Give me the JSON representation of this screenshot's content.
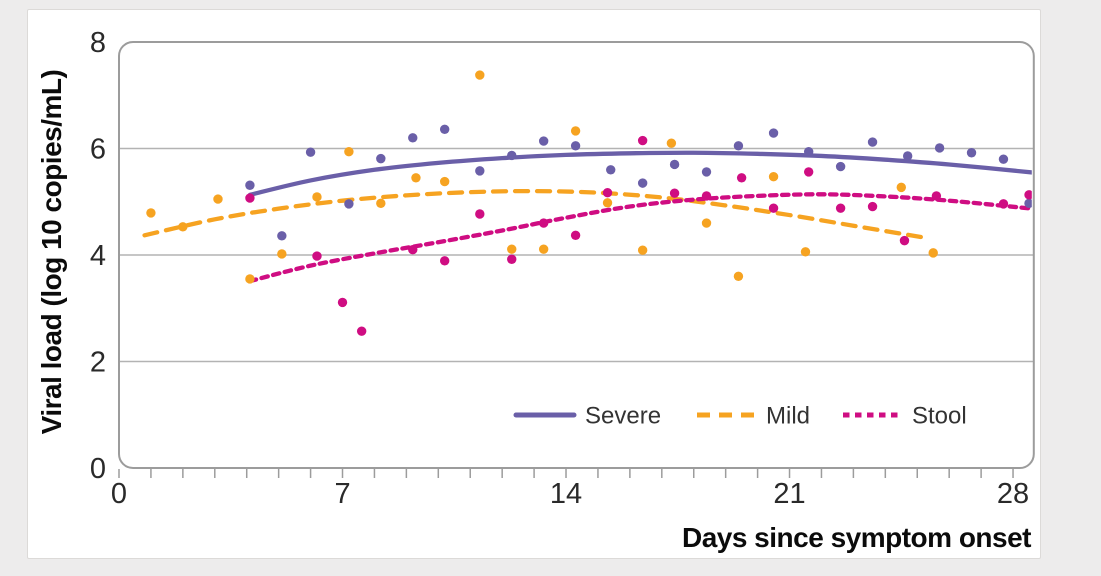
{
  "page": {
    "background_color": "#edecec",
    "card_background": "#ffffff",
    "card_border_color": "#dcdad8"
  },
  "chart_data": {
    "type": "scatter",
    "title": "",
    "xlabel": "Days since symptom onset",
    "ylabel": "Viral load (log 10 copies/mL)",
    "xlim": [
      0,
      28.65
    ],
    "ylim": [
      0,
      8
    ],
    "x_ticks": [
      0,
      7,
      14,
      21,
      28
    ],
    "x_minor_tick_step": 1,
    "y_ticks": [
      0,
      2,
      4,
      6,
      8
    ],
    "grid_y": [
      2,
      4,
      6
    ],
    "grid": "horizontal-only",
    "frame_color": "#9c9c9c",
    "grid_color": "#b3b3b3",
    "tick_label_color": "#2a2a2a",
    "legend_position": "inside-bottom-right",
    "legend_text_color": "#333333",
    "series": [
      {
        "name": "Severe",
        "color": "#6a5fa8",
        "line_style": "solid",
        "marker": "circle",
        "points": [
          [
            4.1,
            5.31
          ],
          [
            5.1,
            4.36
          ],
          [
            6.0,
            5.93
          ],
          [
            7.2,
            4.96
          ],
          [
            8.2,
            5.81
          ],
          [
            9.2,
            6.2
          ],
          [
            10.2,
            6.36
          ],
          [
            11.3,
            5.58
          ],
          [
            12.3,
            5.87
          ],
          [
            13.3,
            6.14
          ],
          [
            14.3,
            6.05
          ],
          [
            15.4,
            5.6
          ],
          [
            16.4,
            5.35
          ],
          [
            17.4,
            5.7
          ],
          [
            18.4,
            5.56
          ],
          [
            19.4,
            6.05
          ],
          [
            20.5,
            6.29
          ],
          [
            21.6,
            5.94
          ],
          [
            22.6,
            5.66
          ],
          [
            23.6,
            6.12
          ],
          [
            24.7,
            5.86
          ],
          [
            25.7,
            6.01
          ],
          [
            26.7,
            5.92
          ],
          [
            27.7,
            5.8
          ],
          [
            28.5,
            4.97
          ]
        ],
        "trend": [
          [
            4.1,
            5.13
          ],
          [
            6,
            5.4
          ],
          [
            8,
            5.6
          ],
          [
            10,
            5.73
          ],
          [
            12,
            5.82
          ],
          [
            14,
            5.88
          ],
          [
            16,
            5.91
          ],
          [
            18,
            5.92
          ],
          [
            20,
            5.9
          ],
          [
            22,
            5.86
          ],
          [
            24,
            5.79
          ],
          [
            26,
            5.7
          ],
          [
            28.6,
            5.55
          ]
        ]
      },
      {
        "name": "Mild",
        "color": "#f6a321",
        "line_style": "dashed",
        "marker": "circle",
        "points": [
          [
            1.0,
            4.79
          ],
          [
            2.0,
            4.53
          ],
          [
            3.1,
            5.05
          ],
          [
            4.1,
            3.55
          ],
          [
            5.1,
            4.02
          ],
          [
            6.2,
            5.09
          ],
          [
            7.2,
            5.94
          ],
          [
            8.2,
            4.97
          ],
          [
            9.3,
            5.45
          ],
          [
            10.2,
            5.38
          ],
          [
            11.3,
            7.38
          ],
          [
            12.3,
            4.11
          ],
          [
            13.3,
            4.11
          ],
          [
            14.3,
            6.33
          ],
          [
            15.3,
            4.98
          ],
          [
            16.4,
            4.09
          ],
          [
            17.3,
            6.1
          ],
          [
            18.4,
            4.6
          ],
          [
            19.4,
            3.6
          ],
          [
            20.5,
            5.47
          ],
          [
            21.5,
            4.06
          ],
          [
            24.5,
            5.27
          ],
          [
            25.5,
            4.04
          ]
        ],
        "trend": [
          [
            0.8,
            4.37
          ],
          [
            3,
            4.67
          ],
          [
            5,
            4.87
          ],
          [
            7,
            5.02
          ],
          [
            9,
            5.12
          ],
          [
            11,
            5.18
          ],
          [
            13,
            5.2
          ],
          [
            15,
            5.17
          ],
          [
            17,
            5.08
          ],
          [
            19,
            4.93
          ],
          [
            21,
            4.75
          ],
          [
            23,
            4.55
          ],
          [
            25.2,
            4.33
          ]
        ]
      },
      {
        "name": "Stool",
        "color": "#cf0d82",
        "line_style": "dash-dotted",
        "marker": "circle",
        "points": [
          [
            4.1,
            5.07
          ],
          [
            6.2,
            3.98
          ],
          [
            7.0,
            3.11
          ],
          [
            7.6,
            2.57
          ],
          [
            9.2,
            4.1
          ],
          [
            10.2,
            3.89
          ],
          [
            11.3,
            4.77
          ],
          [
            12.3,
            3.92
          ],
          [
            13.3,
            4.6
          ],
          [
            14.3,
            4.37
          ],
          [
            15.3,
            5.17
          ],
          [
            16.4,
            6.15
          ],
          [
            17.4,
            5.16
          ],
          [
            18.4,
            5.11
          ],
          [
            19.5,
            5.45
          ],
          [
            20.5,
            4.88
          ],
          [
            21.6,
            5.56
          ],
          [
            22.6,
            4.88
          ],
          [
            23.6,
            4.91
          ],
          [
            24.6,
            4.27
          ],
          [
            25.6,
            5.11
          ],
          [
            27.7,
            4.96
          ],
          [
            28.5,
            5.13
          ]
        ],
        "trend": [
          [
            4.1,
            3.51
          ],
          [
            6,
            3.8
          ],
          [
            8,
            4.03
          ],
          [
            10,
            4.24
          ],
          [
            12,
            4.46
          ],
          [
            14,
            4.7
          ],
          [
            16,
            4.91
          ],
          [
            18,
            5.04
          ],
          [
            20,
            5.11
          ],
          [
            22,
            5.14
          ],
          [
            24,
            5.1
          ],
          [
            26,
            5.02
          ],
          [
            28.6,
            4.87
          ]
        ]
      }
    ]
  }
}
